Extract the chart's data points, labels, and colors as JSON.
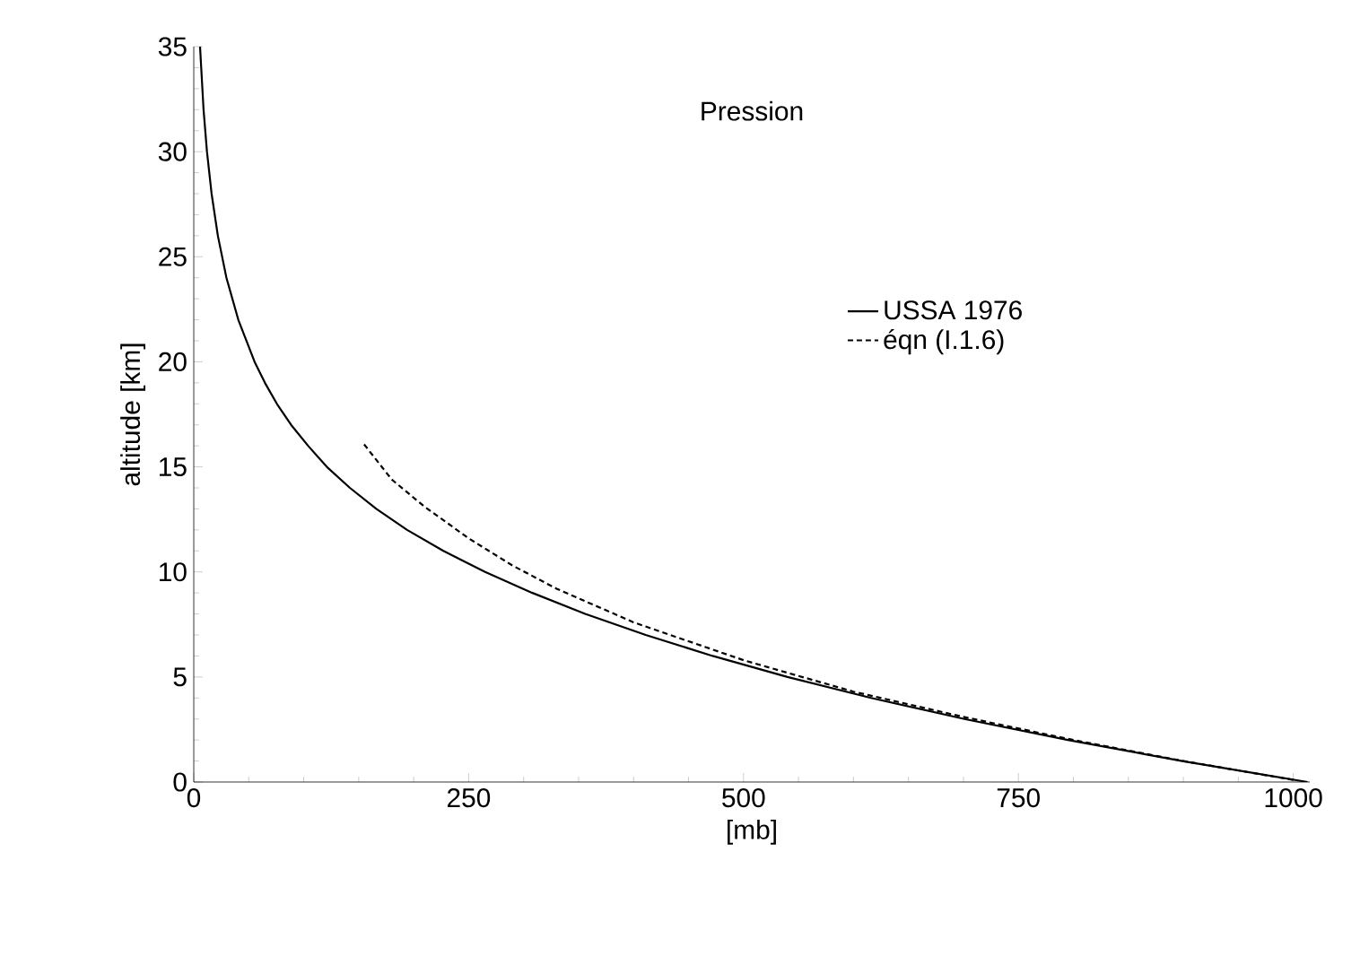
{
  "chart_data": {
    "type": "line",
    "title": "Pression",
    "xlabel": "[mb]",
    "ylabel": "altitude [km]",
    "series": [
      {
        "name": "USSA 1976",
        "color": "#000000",
        "line_style": "solid",
        "x": [
          1013,
          899,
          795,
          701,
          616,
          540,
          472,
          411,
          356,
          308,
          265,
          227,
          194,
          166,
          142,
          121,
          104,
          88.5,
          75.6,
          64.7,
          55.3,
          40.5,
          29.7,
          21.9,
          16.2,
          12.0,
          8.9,
          5.7
        ],
        "values": [
          0,
          1,
          2,
          3,
          4,
          5,
          6,
          7,
          8,
          9,
          10,
          11,
          12,
          13,
          14,
          15,
          16,
          17,
          18,
          19,
          20,
          22,
          24,
          26,
          28,
          30,
          32,
          35
        ]
      },
      {
        "name": "éqn (I.1.6)",
        "color": "#000000",
        "line_style": "dashed",
        "x": [
          1000,
          900,
          800,
          700,
          600,
          500,
          400,
          330,
          290,
          250,
          210,
          180,
          153
        ],
        "values": [
          0.1,
          1.0,
          2.0,
          3.1,
          4.3,
          5.8,
          7.6,
          9.2,
          10.3,
          11.6,
          13.1,
          14.4,
          16.2
        ]
      }
    ],
    "xlim": [
      0,
      1015
    ],
    "ylim": [
      0,
      35
    ],
    "xticks": [
      0,
      250,
      500,
      750,
      1000
    ],
    "yticks": [
      0,
      5,
      10,
      15,
      20,
      25,
      30,
      35
    ],
    "legend": "right",
    "grid": false,
    "marker": "none"
  }
}
